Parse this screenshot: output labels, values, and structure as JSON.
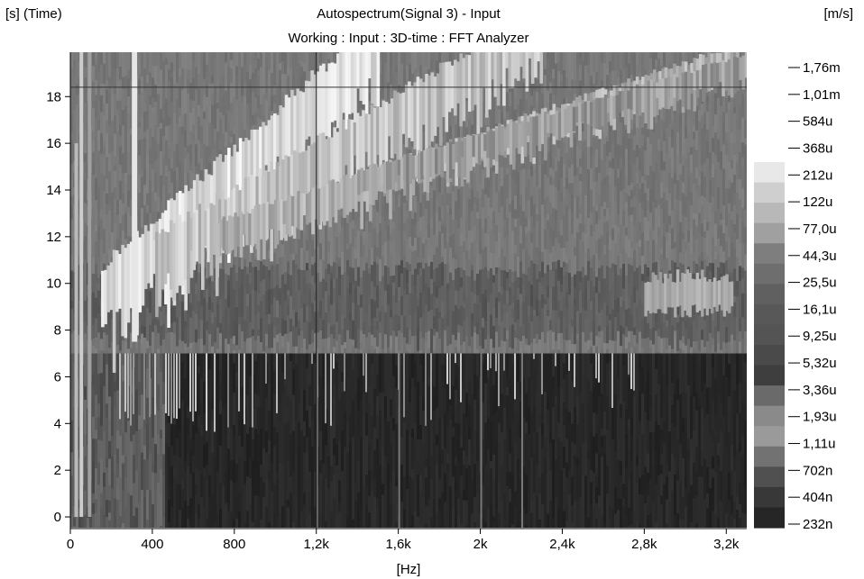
{
  "chart_data": {
    "type": "heatmap",
    "title": "Autospectrum(Signal 3) - Input",
    "subtitle": "Working : Input : 3D-time : FFT Analyzer",
    "ylabel": "[s] (Time)",
    "xlabel": "[Hz]",
    "colorbar_label": "[m/s]",
    "xlim": [
      0,
      3300
    ],
    "ylim": [
      -0.5,
      19.9
    ],
    "x_ticks": [
      {
        "value": 0,
        "label": "0"
      },
      {
        "value": 400,
        "label": "400"
      },
      {
        "value": 800,
        "label": "800"
      },
      {
        "value": 1200,
        "label": "1,2k"
      },
      {
        "value": 1600,
        "label": "1,6k"
      },
      {
        "value": 2000,
        "label": "2k"
      },
      {
        "value": 2400,
        "label": "2,4k"
      },
      {
        "value": 2800,
        "label": "2,8k"
      },
      {
        "value": 3200,
        "label": "3,2k"
      }
    ],
    "y_ticks": [
      {
        "value": 0,
        "label": "0"
      },
      {
        "value": 2,
        "label": "2"
      },
      {
        "value": 4,
        "label": "4"
      },
      {
        "value": 6,
        "label": "6"
      },
      {
        "value": 8,
        "label": "8"
      },
      {
        "value": 10,
        "label": "10"
      },
      {
        "value": 12,
        "label": "12"
      },
      {
        "value": 14,
        "label": "14"
      },
      {
        "value": 16,
        "label": "16"
      },
      {
        "value": 18,
        "label": "18"
      }
    ],
    "cursor": {
      "x": 1200,
      "y": 18.4
    },
    "colorbar_ticks": [
      "1,76m",
      "1,01m",
      "584u",
      "368u",
      "212u",
      "122u",
      "77,0u",
      "44,3u",
      "25,5u",
      "16,1u",
      "9,25u",
      "5,32u",
      "3,36u",
      "1,93u",
      "1,11u",
      "702n",
      "404n",
      "232n"
    ],
    "colorbar_gray": [
      "#e8e8e8",
      "#cfcfcf",
      "#b8b8b8",
      "#a0a0a0",
      "#7e7e7e",
      "#6e6e6e",
      "#606060",
      "#585858",
      "#545454",
      "#4a4a4a",
      "#3e3e3e",
      "#6a6a6a",
      "#8a8a8a",
      "#9a9a9a",
      "#727272",
      "#505050",
      "#383838",
      "#262626"
    ]
  }
}
